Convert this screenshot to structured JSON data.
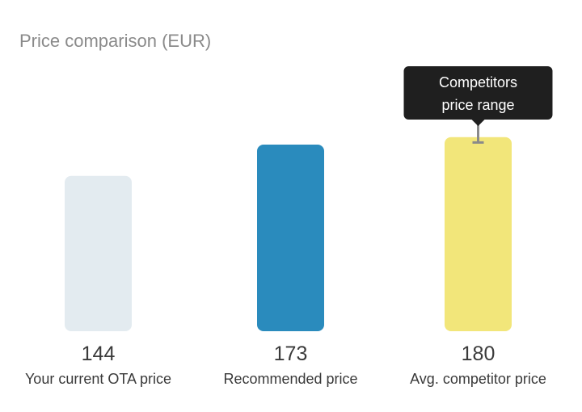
{
  "chart_data": {
    "type": "bar",
    "title": "Price comparison (EUR)",
    "categories": [
      "Your current OTA price",
      "Recommended price",
      "Avg. competitor price"
    ],
    "values": [
      144,
      173,
      180
    ],
    "value_labels": [
      "144",
      "173",
      "180"
    ],
    "colors": [
      "#e3ebf0",
      "#2a8bbd",
      "#f2e67a"
    ],
    "ylim": [
      0,
      200
    ],
    "grid": false,
    "competitor_range": {
      "label_lines": [
        "Competitors",
        "price range"
      ],
      "low": 175,
      "high": 200,
      "color": "#8a8a8a",
      "tooltip_color": "#1f1f1f"
    }
  }
}
